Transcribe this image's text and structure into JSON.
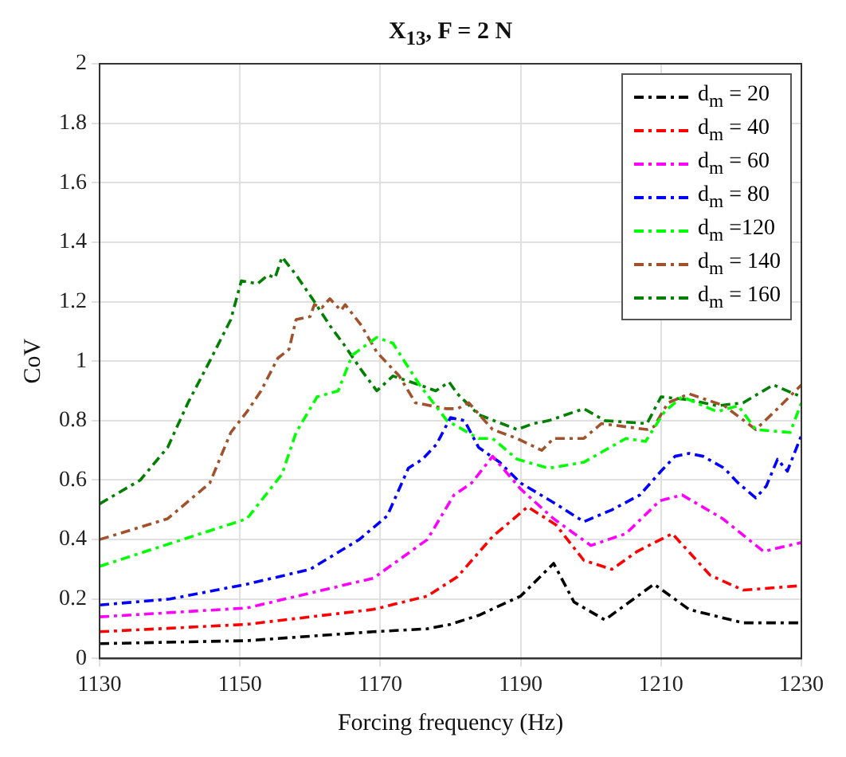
{
  "chart_data": {
    "type": "line",
    "title": "X$_{13}$, F = 2 N",
    "xlabel": "Forcing frequency (Hz)",
    "ylabel": "CoV",
    "xlim": [
      1130,
      1230
    ],
    "xticks": [
      1130,
      1150,
      1170,
      1190,
      1210,
      1230
    ],
    "ylim": [
      0,
      2
    ],
    "yticks": [
      0,
      0.2,
      0.4,
      0.6,
      0.8,
      1,
      1.2,
      1.4,
      1.6,
      1.8,
      2
    ],
    "grid": true,
    "legend": "top right",
    "marker": "none",
    "line_style": "dashed",
    "series": [
      {
        "name": "d$_{m}$ = 20",
        "color": "#000000",
        "x": [
          1130,
          1151,
          1169,
          1176.7,
          1180,
          1184,
          1190,
          1194.7,
          1197.6,
          1202,
          1209,
          1214,
          1221.7,
          1230
        ],
        "values": [
          0.05,
          0.06,
          0.09,
          0.1,
          0.115,
          0.145,
          0.21,
          0.32,
          0.19,
          0.13,
          0.25,
          0.165,
          0.12,
          0.12
        ]
      },
      {
        "name": "d$_{m}$ = 40",
        "color": "#ff0000",
        "x": [
          1130,
          1151,
          1169,
          1176.7,
          1181,
          1186,
          1191,
          1195,
          1199,
          1203,
          1206.6,
          1211.6,
          1217,
          1221.7,
          1230
        ],
        "values": [
          0.09,
          0.115,
          0.165,
          0.21,
          0.275,
          0.41,
          0.51,
          0.45,
          0.33,
          0.3,
          0.36,
          0.42,
          0.28,
          0.23,
          0.245
        ]
      },
      {
        "name": "d$_{m}$ = 60",
        "color": "#ff00ff",
        "x": [
          1130,
          1151,
          1169,
          1176.7,
          1180.5,
          1183,
          1186,
          1190,
          1194.7,
          1200,
          1205,
          1209.8,
          1213,
          1218.8,
          1224.6,
          1230
        ],
        "values": [
          0.14,
          0.17,
          0.27,
          0.4,
          0.55,
          0.59,
          0.68,
          0.57,
          0.47,
          0.38,
          0.42,
          0.53,
          0.55,
          0.47,
          0.36,
          0.39
        ]
      },
      {
        "name": "d$_{m}$ = 80",
        "color": "#0000ff",
        "x": [
          1130,
          1140,
          1151,
          1160,
          1167,
          1171,
          1174,
          1176,
          1178,
          1180,
          1182,
          1184,
          1187,
          1190,
          1195,
          1199,
          1203,
          1207,
          1210,
          1212,
          1214,
          1216,
          1219,
          1221,
          1223.5,
          1225,
          1226.6,
          1228,
          1230
        ],
        "values": [
          0.18,
          0.2,
          0.25,
          0.3,
          0.4,
          0.48,
          0.64,
          0.67,
          0.72,
          0.81,
          0.8,
          0.71,
          0.66,
          0.59,
          0.52,
          0.46,
          0.5,
          0.55,
          0.63,
          0.68,
          0.69,
          0.68,
          0.64,
          0.59,
          0.54,
          0.58,
          0.67,
          0.63,
          0.75
        ]
      },
      {
        "name": "d$_{m}$ =120",
        "color": "#00ff00",
        "x": [
          1130,
          1151,
          1156,
          1158,
          1161,
          1164,
          1166,
          1169.5,
          1171.8,
          1175.6,
          1179.5,
          1184,
          1186,
          1189.5,
          1194,
          1199,
          1205,
          1207.8,
          1210.5,
          1213,
          1218,
          1221,
          1223.5,
          1228.4,
          1230
        ],
        "values": [
          0.31,
          0.47,
          0.62,
          0.76,
          0.88,
          0.9,
          1.02,
          1.08,
          1.06,
          0.92,
          0.8,
          0.74,
          0.74,
          0.67,
          0.64,
          0.66,
          0.74,
          0.73,
          0.83,
          0.88,
          0.83,
          0.85,
          0.77,
          0.76,
          0.86
        ]
      },
      {
        "name": "d$_{m}$ = 140",
        "color": "#a0522d",
        "x": [
          1130,
          1139.7,
          1145.7,
          1148.7,
          1151,
          1153,
          1155.4,
          1157,
          1158,
          1160,
          1160.6,
          1161.7,
          1162.8,
          1164.4,
          1165,
          1167.3,
          1169.5,
          1172.7,
          1175,
          1179.4,
          1181,
          1182.6,
          1186,
          1189.5,
          1193,
          1194.7,
          1199,
          1201.5,
          1208,
          1209,
          1211,
          1214,
          1219,
          1223.5,
          1226.6,
          1230
        ],
        "values": [
          0.4,
          0.47,
          0.59,
          0.76,
          0.83,
          0.9,
          1.01,
          1.04,
          1.14,
          1.15,
          1.19,
          1.18,
          1.21,
          1.17,
          1.19,
          1.12,
          1.03,
          0.95,
          0.86,
          0.84,
          0.84,
          0.86,
          0.77,
          0.74,
          0.7,
          0.74,
          0.74,
          0.79,
          0.77,
          0.78,
          0.86,
          0.89,
          0.85,
          0.77,
          0.84,
          0.92
        ]
      },
      {
        "name": "d$_{m}$ = 160",
        "color": "#008000",
        "x": [
          1130,
          1135.8,
          1139.7,
          1142.6,
          1145.7,
          1148.7,
          1150.2,
          1152.5,
          1154,
          1155,
          1156,
          1158,
          1160.6,
          1162.8,
          1165,
          1167.3,
          1169.5,
          1171.8,
          1175.6,
          1177.9,
          1179.8,
          1181,
          1184,
          1189.5,
          1191.8,
          1194,
          1199,
          1202,
          1208,
          1210,
          1214,
          1218,
          1221.7,
          1226,
          1230
        ],
        "values": [
          0.52,
          0.6,
          0.71,
          0.86,
          1.0,
          1.14,
          1.27,
          1.26,
          1.29,
          1.28,
          1.35,
          1.29,
          1.2,
          1.12,
          1.05,
          0.97,
          0.9,
          0.95,
          0.92,
          0.9,
          0.93,
          0.89,
          0.82,
          0.77,
          0.79,
          0.8,
          0.84,
          0.8,
          0.79,
          0.88,
          0.87,
          0.85,
          0.86,
          0.92,
          0.88
        ]
      }
    ]
  }
}
